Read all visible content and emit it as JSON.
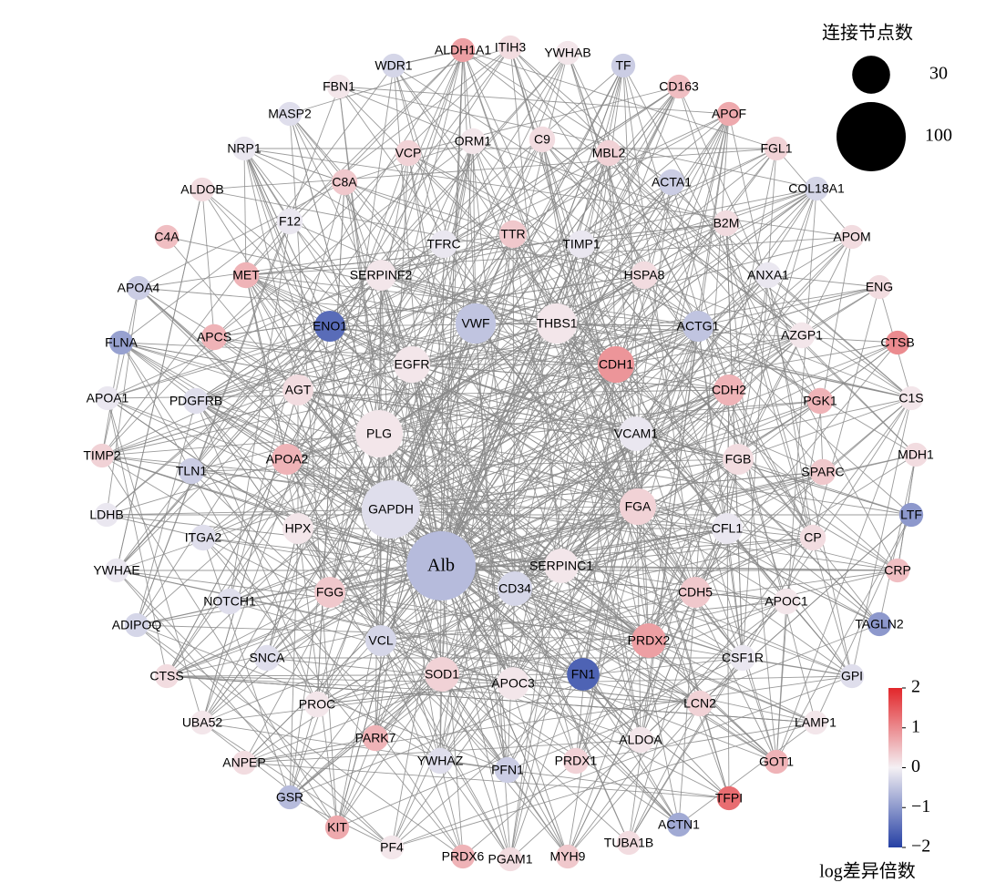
{
  "legend": {
    "size_title": "连接节点数",
    "size_ticks": [
      30,
      100
    ],
    "color_title": "log差异倍数",
    "color_lim": [
      -2,
      2
    ],
    "color_ticks": [
      2,
      1,
      0,
      {
        "value": -1,
        "label": "−1"
      },
      {
        "value": -2,
        "label": "−2"
      }
    ]
  },
  "nodes": [
    {
      "label": "ALDH1A1",
      "degree": 12,
      "logfc": 0.8
    },
    {
      "label": "ITIH3",
      "degree": 12,
      "logfc": 0.2
    },
    {
      "label": "YWHAB",
      "degree": 12,
      "logfc": 0.1
    },
    {
      "label": "TF",
      "degree": 12,
      "logfc": -0.4
    },
    {
      "label": "CD163",
      "degree": 12,
      "logfc": 0.5
    },
    {
      "label": "APOF",
      "degree": 12,
      "logfc": 0.7
    },
    {
      "label": "FGL1",
      "degree": 12,
      "logfc": 0.3
    },
    {
      "label": "COL18A1",
      "degree": 12,
      "logfc": -0.3
    },
    {
      "label": "APOM",
      "degree": 12,
      "logfc": 0.2
    },
    {
      "label": "ENG",
      "degree": 12,
      "logfc": 0.2
    },
    {
      "label": "CTSB",
      "degree": 12,
      "logfc": 1.0
    },
    {
      "label": "C1S",
      "degree": 12,
      "logfc": 0.1
    },
    {
      "label": "MDH1",
      "degree": 12,
      "logfc": 0.2
    },
    {
      "label": "LTF",
      "degree": 12,
      "logfc": -1.0
    },
    {
      "label": "CRP",
      "degree": 12,
      "logfc": 0.5
    },
    {
      "label": "TAGLN2",
      "degree": 12,
      "logfc": -1.0
    },
    {
      "label": "GPI",
      "degree": 12,
      "logfc": -0.2
    },
    {
      "label": "LAMP1",
      "degree": 12,
      "logfc": 0.1
    },
    {
      "label": "GOT1",
      "degree": 12,
      "logfc": 0.6
    },
    {
      "label": "TFPI",
      "degree": 12,
      "logfc": 1.3
    },
    {
      "label": "ACTN1",
      "degree": 12,
      "logfc": -0.8
    },
    {
      "label": "TUBA1B",
      "degree": 12,
      "logfc": 0.2
    },
    {
      "label": "MYH9",
      "degree": 12,
      "logfc": 0.4
    },
    {
      "label": "PGAM1",
      "degree": 12,
      "logfc": 0.2
    },
    {
      "label": "PRDX6",
      "degree": 12,
      "logfc": 0.6
    },
    {
      "label": "PF4",
      "degree": 12,
      "logfc": 0.1
    },
    {
      "label": "KIT",
      "degree": 12,
      "logfc": 0.7
    },
    {
      "label": "GSR",
      "degree": 12,
      "logfc": -0.6
    },
    {
      "label": "ANPEP",
      "degree": 12,
      "logfc": 0.2
    },
    {
      "label": "UBA52",
      "degree": 12,
      "logfc": 0.1
    },
    {
      "label": "CTSS",
      "degree": 12,
      "logfc": 0.2
    },
    {
      "label": "ADIPOQ",
      "degree": 12,
      "logfc": -0.3
    },
    {
      "label": "YWHAE",
      "degree": 12,
      "logfc": -0.1
    },
    {
      "label": "LDHB",
      "degree": 12,
      "logfc": -0.1
    },
    {
      "label": "TIMP2",
      "degree": 12,
      "logfc": 0.3
    },
    {
      "label": "APOA1",
      "degree": 12,
      "logfc": -0.1
    },
    {
      "label": "FLNA",
      "degree": 12,
      "logfc": -0.9
    },
    {
      "label": "APOA4",
      "degree": 12,
      "logfc": -0.4
    },
    {
      "label": "C4A",
      "degree": 12,
      "logfc": 0.5
    },
    {
      "label": "ALDOB",
      "degree": 12,
      "logfc": 0.2
    },
    {
      "label": "NRP1",
      "degree": 12,
      "logfc": -0.1
    },
    {
      "label": "MASP2",
      "degree": 12,
      "logfc": -0.2
    },
    {
      "label": "FBN1",
      "degree": 12,
      "logfc": 0.1
    },
    {
      "label": "WDR1",
      "degree": 12,
      "logfc": -0.3
    },
    {
      "label": "C8A",
      "degree": 14,
      "logfc": 0.4
    },
    {
      "label": "VCP",
      "degree": 14,
      "logfc": 0.3
    },
    {
      "label": "ORM1",
      "degree": 14,
      "logfc": 0.1
    },
    {
      "label": "C9",
      "degree": 14,
      "logfc": 0.2
    },
    {
      "label": "MBL2",
      "degree": 14,
      "logfc": 0.3
    },
    {
      "label": "ACTA1",
      "degree": 14,
      "logfc": -0.4
    },
    {
      "label": "B2M",
      "degree": 14,
      "logfc": 0.2
    },
    {
      "label": "ANXA1",
      "degree": 14,
      "logfc": -0.1
    },
    {
      "label": "AZGP1",
      "degree": 14,
      "logfc": 0.1
    },
    {
      "label": "PGK1",
      "degree": 14,
      "logfc": 0.6
    },
    {
      "label": "SPARC",
      "degree": 14,
      "logfc": 0.4
    },
    {
      "label": "CP",
      "degree": 14,
      "logfc": 0.2
    },
    {
      "label": "APOC1",
      "degree": 14,
      "logfc": 0.1
    },
    {
      "label": "CSF1R",
      "degree": 14,
      "logfc": -0.1
    },
    {
      "label": "LCN2",
      "degree": 14,
      "logfc": 0.3
    },
    {
      "label": "ALDOA",
      "degree": 14,
      "logfc": 0.1
    },
    {
      "label": "PRDX1",
      "degree": 14,
      "logfc": 0.3
    },
    {
      "label": "PFN1",
      "degree": 14,
      "logfc": -0.4
    },
    {
      "label": "YWHAZ",
      "degree": 14,
      "logfc": -0.2
    },
    {
      "label": "PARK7",
      "degree": 14,
      "logfc": 0.6
    },
    {
      "label": "PROC",
      "degree": 14,
      "logfc": 0.1
    },
    {
      "label": "SNCA",
      "degree": 14,
      "logfc": -0.2
    },
    {
      "label": "NOTCH1",
      "degree": 14,
      "logfc": -0.2
    },
    {
      "label": "ITGA2",
      "degree": 14,
      "logfc": -0.2
    },
    {
      "label": "TLN1",
      "degree": 14,
      "logfc": -0.4
    },
    {
      "label": "PDGFRB",
      "degree": 14,
      "logfc": -0.2
    },
    {
      "label": "APCS",
      "degree": 14,
      "logfc": 0.6
    },
    {
      "label": "MET",
      "degree": 14,
      "logfc": 0.6
    },
    {
      "label": "F12",
      "degree": 14,
      "logfc": -0.1
    },
    {
      "label": "TFRC",
      "degree": 16,
      "logfc": -0.1
    },
    {
      "label": "TTR",
      "degree": 16,
      "logfc": 0.4
    },
    {
      "label": "TIMP1",
      "degree": 16,
      "logfc": -0.1
    },
    {
      "label": "HSPA8",
      "degree": 16,
      "logfc": 0.2
    },
    {
      "label": "SERPINF2",
      "degree": 20,
      "logfc": 0.1
    },
    {
      "label": "ENO1",
      "degree": 20,
      "logfc": -1.5
    },
    {
      "label": "VWF",
      "degree": 34,
      "logfc": -0.5
    },
    {
      "label": "THBS1",
      "degree": 34,
      "logfc": 0.1
    },
    {
      "label": "ACTG1",
      "degree": 20,
      "logfc": -0.5
    },
    {
      "label": "EGFR",
      "degree": 28,
      "logfc": 0.1
    },
    {
      "label": "CDH1",
      "degree": 28,
      "logfc": 0.9
    },
    {
      "label": "AGT",
      "degree": 20,
      "logfc": 0.2
    },
    {
      "label": "CDH2",
      "degree": 20,
      "logfc": 0.6
    },
    {
      "label": "PLG",
      "degree": 47,
      "logfc": 0.1
    },
    {
      "label": "VCAM1",
      "degree": 25,
      "logfc": -0.1
    },
    {
      "label": "APOA2",
      "degree": 20,
      "logfc": 0.6
    },
    {
      "label": "FGB",
      "degree": 20,
      "logfc": 0.2
    },
    {
      "label": "GAPDH",
      "degree": 71,
      "logfc": -0.2
    },
    {
      "label": "FGA",
      "degree": 28,
      "logfc": 0.3
    },
    {
      "label": "HPX",
      "degree": 20,
      "logfc": 0.1
    },
    {
      "label": "CFL1",
      "degree": 20,
      "logfc": -0.1
    },
    {
      "label": "Alb",
      "degree": 100,
      "logfc": -0.6
    },
    {
      "label": "SERPINC1",
      "degree": 25,
      "logfc": 0.1
    },
    {
      "label": "CD34",
      "degree": 25,
      "logfc": -0.3
    },
    {
      "label": "FGG",
      "degree": 20,
      "logfc": 0.4
    },
    {
      "label": "CDH5",
      "degree": 20,
      "logfc": 0.4
    },
    {
      "label": "VCL",
      "degree": 20,
      "logfc": -0.3
    },
    {
      "label": "PRDX2",
      "degree": 25,
      "logfc": 0.8
    },
    {
      "label": "SOD1",
      "degree": 25,
      "logfc": 0.3
    },
    {
      "label": "APOC3",
      "degree": 22,
      "logfc": 0.1
    },
    {
      "label": "FN1",
      "degree": 22,
      "logfc": -1.6
    }
  ]
}
